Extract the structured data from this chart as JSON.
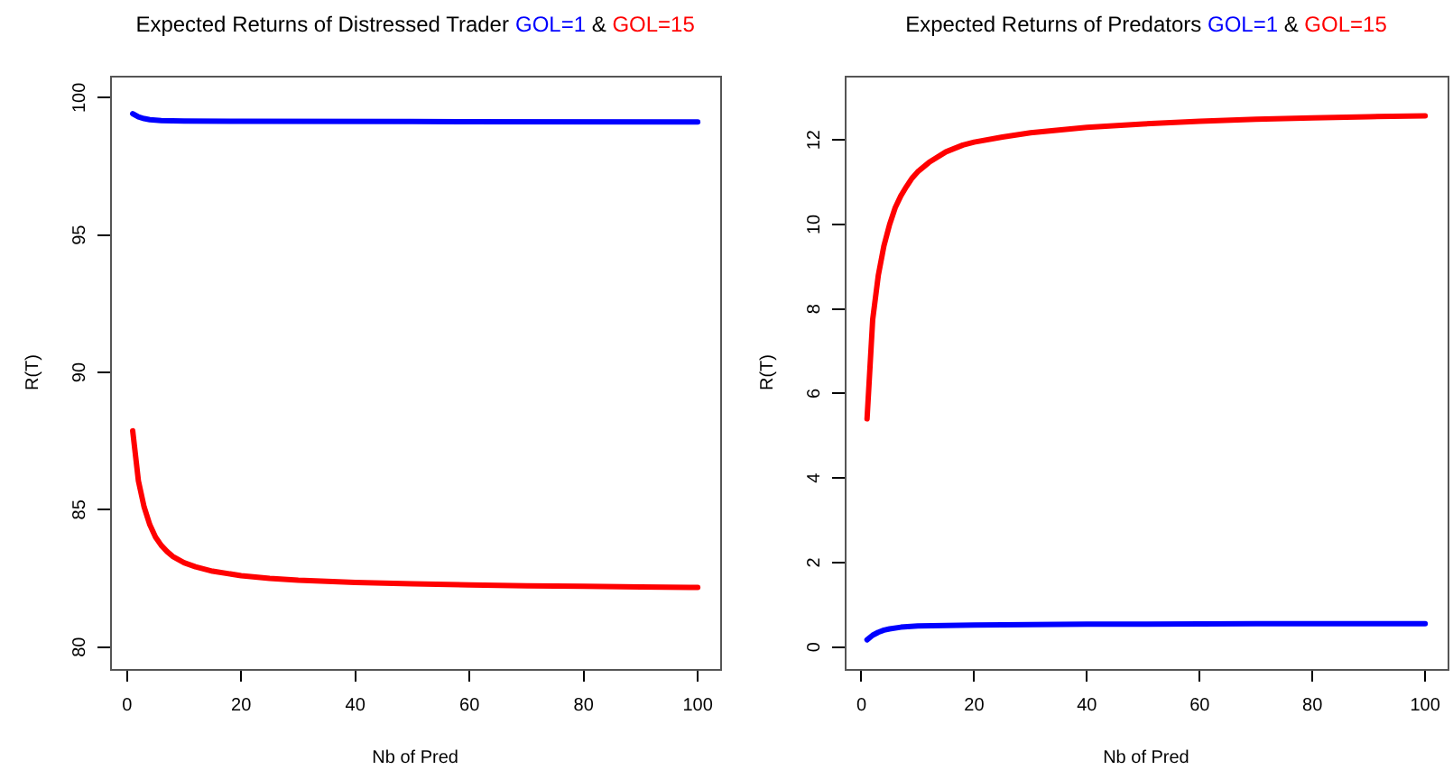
{
  "chart_data": [
    {
      "type": "line",
      "title": "Expected Returns of Distressed Trader",
      "xlabel": "Nb of Pred",
      "ylabel": "R(T)",
      "legend": "top",
      "annotations": [
        "&"
      ],
      "grid": false,
      "marker": "none",
      "line_style": "solid",
      "xlim": [
        -2.96,
        103.96
      ],
      "ylim": [
        79.2,
        100.8
      ],
      "xticks": [
        0,
        20,
        40,
        60,
        80,
        100
      ],
      "yticks": [
        80,
        85,
        90,
        95,
        100
      ],
      "series": [
        {
          "name": "GOL=1",
          "color": "#0000ff",
          "x": [
            1,
            2,
            3,
            4,
            6,
            10,
            20,
            50,
            100
          ],
          "values": [
            99.42,
            99.3,
            99.24,
            99.2,
            99.17,
            99.15,
            99.14,
            99.13,
            99.12
          ]
        },
        {
          "name": "GOL=15",
          "color": "#ff0000",
          "x": [
            1,
            2,
            3,
            4,
            5,
            6,
            7,
            8,
            10,
            12,
            15,
            20,
            25,
            30,
            40,
            50,
            60,
            70,
            80,
            90,
            100
          ],
          "values": [
            87.87,
            86.05,
            85.1,
            84.45,
            84.0,
            83.7,
            83.48,
            83.3,
            83.07,
            82.92,
            82.76,
            82.6,
            82.5,
            82.43,
            82.35,
            82.3,
            82.26,
            82.23,
            82.21,
            82.19,
            82.17
          ]
        }
      ]
    },
    {
      "type": "line",
      "title": "Expected Returns of Predators",
      "xlabel": "Nb of Pred",
      "ylabel": "R(T)",
      "legend": "top",
      "annotations": [
        "&"
      ],
      "grid": false,
      "marker": "none",
      "line_style": "solid",
      "xlim": [
        -2.96,
        103.96
      ],
      "ylim": [
        -0.52,
        13.52
      ],
      "xticks": [
        0,
        20,
        40,
        60,
        80,
        100
      ],
      "yticks": [
        0,
        2,
        4,
        6,
        8,
        10,
        12
      ],
      "series": [
        {
          "name": "GOL=1",
          "color": "#0000ff",
          "x": [
            1,
            2,
            3,
            4,
            5,
            7,
            10,
            20,
            40,
            70,
            100
          ],
          "values": [
            0.17,
            0.28,
            0.35,
            0.4,
            0.43,
            0.47,
            0.5,
            0.52,
            0.54,
            0.55,
            0.55
          ]
        },
        {
          "name": "GOL=15",
          "color": "#ff0000",
          "x": [
            1,
            2,
            3,
            4,
            5,
            6,
            7,
            8,
            9,
            10,
            12,
            15,
            18,
            20,
            25,
            30,
            40,
            50,
            60,
            70,
            80,
            90,
            100
          ],
          "values": [
            5.4,
            7.75,
            8.8,
            9.5,
            10.0,
            10.4,
            10.68,
            10.9,
            11.1,
            11.25,
            11.47,
            11.72,
            11.88,
            11.95,
            12.07,
            12.17,
            12.3,
            12.38,
            12.44,
            12.49,
            12.52,
            12.55,
            12.57
          ]
        }
      ]
    }
  ]
}
